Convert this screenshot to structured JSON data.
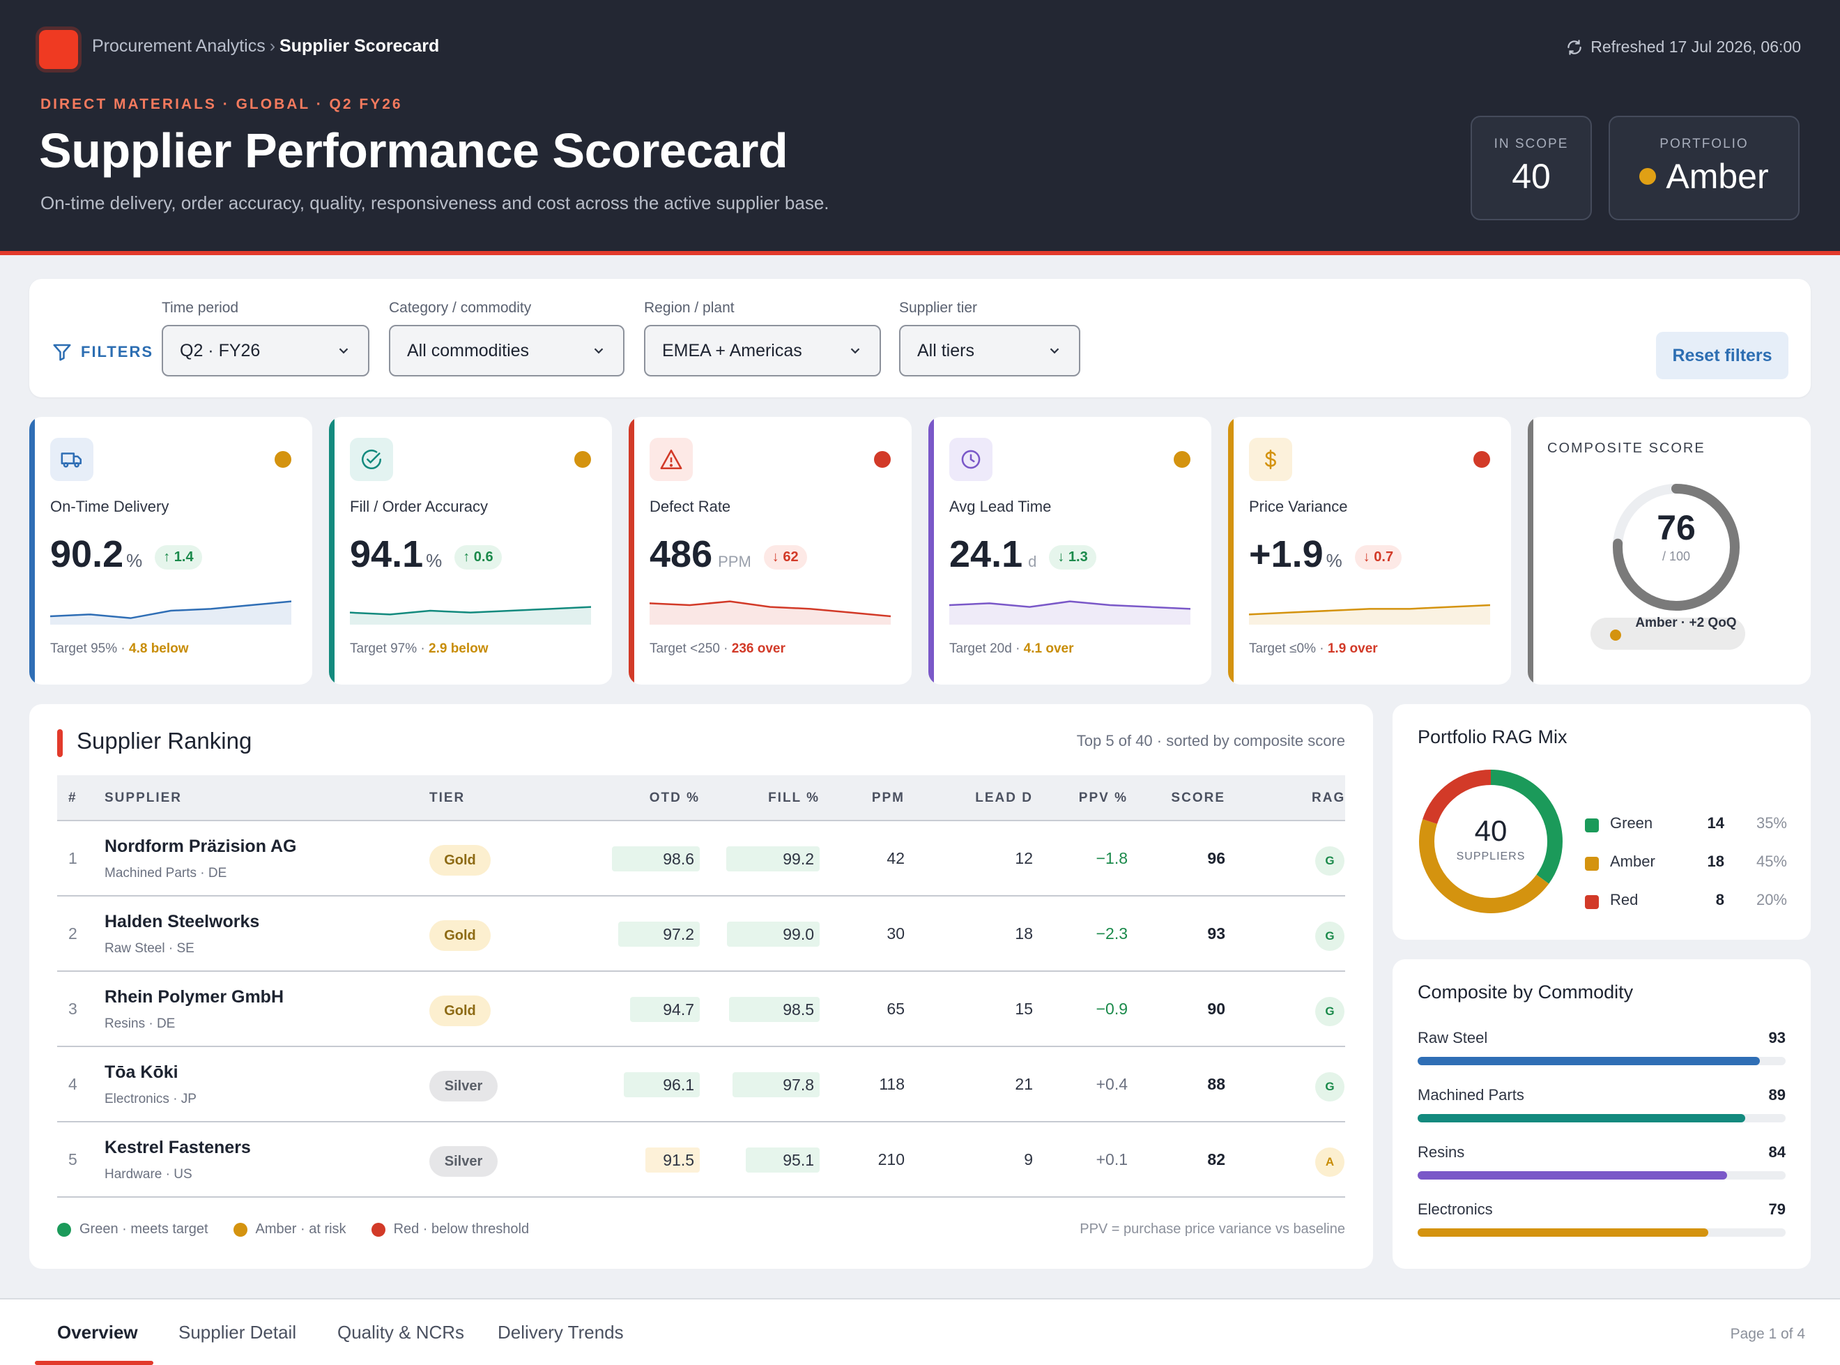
{
  "header": {
    "breadcrumb_parent": "Procurement Analytics",
    "breadcrumb_sep": "›",
    "breadcrumb_current": "Supplier Scorecard",
    "refreshed": "Refreshed 17 Jul 2026, 06:00",
    "eyebrow": "DIRECT MATERIALS · GLOBAL · Q2 FY26",
    "title": "Supplier Performance Scorecard",
    "subtitle": "On-time delivery, order accuracy, quality, responsiveness and cost across the active supplier base.",
    "in_scope_label": "IN SCOPE",
    "in_scope_value": "40",
    "portfolio_label": "PORTFOLIO",
    "portfolio_value": "Amber"
  },
  "filters": {
    "label": "FILTERS",
    "time_label": "Time period",
    "time_value": "Q2 · FY26",
    "category_label": "Category / commodity",
    "category_value": "All commodities",
    "region_label": "Region / plant",
    "region_value": "EMEA + Americas",
    "tier_label": "Supplier tier",
    "tier_value": "All tiers",
    "reset_label": "Reset filters"
  },
  "kpis": [
    {
      "label": "On-Time Delivery",
      "value": "90.2",
      "unit": "%",
      "delta": "↑ 1.4",
      "target": "Target 95% · ",
      "gap": "4.8 below",
      "accent": "#2f6eb5",
      "rag": "#d4930f",
      "trend": [
        3,
        4,
        2,
        6,
        7,
        9,
        11
      ]
    },
    {
      "label": "Fill / Order Accuracy",
      "value": "94.1",
      "unit": "%",
      "delta": "↑ 0.6",
      "target": "Target 97% · ",
      "gap": "2.9 below",
      "accent": "#138a7e",
      "rag": "#d4930f",
      "trend": [
        5,
        4,
        6,
        5,
        6,
        7,
        8
      ]
    },
    {
      "label": "Defect Rate",
      "value": "486",
      "unit": "PPM",
      "delta": "↓ 62",
      "target": "Target <250 · ",
      "gap": "236 over",
      "accent": "#d23a28",
      "rag": "#d23a28",
      "trend": [
        10,
        9,
        11,
        8,
        7,
        5,
        3
      ]
    },
    {
      "label": "Avg Lead Time",
      "value": "24.1",
      "unit": "d",
      "delta": "↓ 1.3",
      "target": "Target 20d · ",
      "gap": "4.1 over",
      "accent": "#7a58c8",
      "rag": "#d4930f",
      "trend": [
        9,
        10,
        8,
        11,
        9,
        8,
        7
      ]
    },
    {
      "label": "Price Variance",
      "value": "+1.9",
      "unit": "%",
      "delta": "↓ 0.7",
      "target": "Target ≤0% · ",
      "gap": "1.9 over",
      "accent": "#d4930f",
      "rag": "#d23a28",
      "trend": [
        4,
        5,
        6,
        7,
        7,
        8,
        9
      ]
    }
  ],
  "composite": {
    "title": "COMPOSITE SCORE",
    "score": "76",
    "denominator": "/ 100",
    "score_value": 76,
    "pill_text": "Amber · +2 QoQ"
  },
  "ranking": {
    "title": "Supplier Ranking",
    "meta": "Top 5 of 40 · sorted by composite score",
    "columns": [
      "#",
      "SUPPLIER",
      "TIER",
      "OTD %",
      "FILL %",
      "PPM",
      "LEAD D",
      "PPV %",
      "SCORE",
      "RAG"
    ],
    "rows": [
      {
        "rank": "1",
        "name": "Nordform Präzision AG",
        "sub": "Machined Parts · DE",
        "tier": "Gold",
        "otd": "98.6",
        "fill": "99.2",
        "ppm": "42",
        "lead": "12",
        "ppv": "−1.8",
        "score": "96",
        "rag": "G"
      },
      {
        "rank": "2",
        "name": "Halden Steelworks",
        "sub": "Raw Steel · SE",
        "tier": "Gold",
        "otd": "97.2",
        "fill": "99.0",
        "ppm": "30",
        "lead": "18",
        "ppv": "−2.3",
        "score": "93",
        "rag": "G"
      },
      {
        "rank": "3",
        "name": "Rhein Polymer GmbH",
        "sub": "Resins · DE",
        "tier": "Gold",
        "otd": "94.7",
        "fill": "98.5",
        "ppm": "65",
        "lead": "15",
        "ppv": "−0.9",
        "score": "90",
        "rag": "G"
      },
      {
        "rank": "4",
        "name": "Tōa Kōki",
        "sub": "Electronics · JP",
        "tier": "Silver",
        "otd": "96.1",
        "fill": "97.8",
        "ppm": "118",
        "lead": "21",
        "ppv": "+0.4",
        "score": "88",
        "rag": "G"
      },
      {
        "rank": "5",
        "name": "Kestrel Fasteners",
        "sub": "Hardware · US",
        "tier": "Silver",
        "otd": "91.5",
        "fill": "95.1",
        "ppm": "210",
        "lead": "9",
        "ppv": "+0.1",
        "score": "82",
        "rag": "A"
      }
    ],
    "legend": [
      "Green · meets target",
      "Amber · at risk",
      "Red · below threshold"
    ],
    "footnote": "PPV = purchase price variance vs baseline"
  },
  "rag_mix": {
    "title": "Portfolio RAG Mix",
    "total": "40",
    "total_label": "SUPPLIERS",
    "items": [
      {
        "name": "Green",
        "count": "14",
        "pct": "35%",
        "value": 14,
        "color": "#1b9a5a"
      },
      {
        "name": "Amber",
        "count": "18",
        "pct": "45%",
        "value": 18,
        "color": "#d4930f"
      },
      {
        "name": "Red",
        "count": "8",
        "pct": "20%",
        "value": 8,
        "color": "#d23a28"
      }
    ]
  },
  "commodity": {
    "title": "Composite by Commodity",
    "items": [
      {
        "name": "Raw Steel",
        "value": "93",
        "score": 93,
        "color": "#2f6eb5"
      },
      {
        "name": "Machined Parts",
        "value": "89",
        "score": 89,
        "color": "#138a7e"
      },
      {
        "name": "Resins",
        "value": "84",
        "score": 84,
        "color": "#7a58c8"
      },
      {
        "name": "Electronics",
        "value": "79",
        "score": 79,
        "color": "#d4930f"
      }
    ]
  },
  "tabs": {
    "items": [
      "Overview",
      "Supplier Detail",
      "Quality & NCRs",
      "Delivery Trends"
    ],
    "page": "Page 1 of 4"
  }
}
